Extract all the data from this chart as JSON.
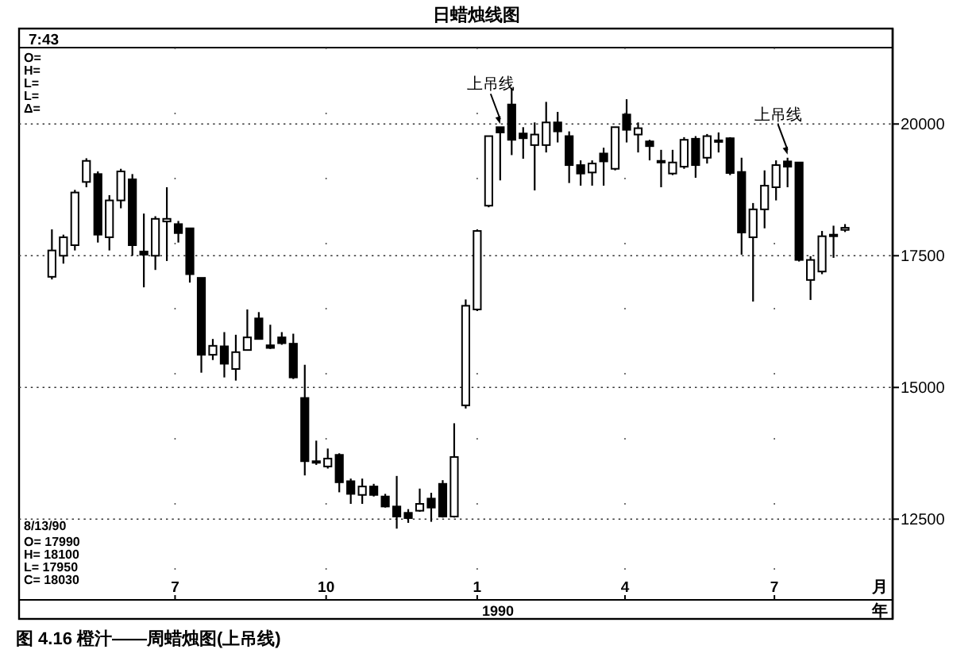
{
  "chart_data": {
    "type": "candlestick",
    "title": "日蜡烛线图",
    "xlabel": "月",
    "annotations": [
      "7:43",
      "O=",
      "H=",
      "L=",
      "L=",
      "Δ=",
      "8/13/90",
      "O= 17990",
      "H= 18100",
      "L= 17950",
      "C= 18030",
      "1990",
      "年",
      "图 4.16 橙汁——周蜡烛图(上吊线)",
      {
        "text": "上吊线",
        "x": "1990-01-15",
        "y": 19940
      },
      {
        "text": "上吊线",
        "x": "1990-07-09",
        "y": 19360
      }
    ],
    "x": [
      "1989-04-17",
      "1989-04-24",
      "1989-05-01",
      "1989-05-08",
      "1989-05-15",
      "1989-05-22",
      "1989-05-29",
      "1989-06-05",
      "1989-06-12",
      "1989-06-19",
      "1989-06-26",
      "1989-07-03",
      "1989-07-10",
      "1989-07-17",
      "1989-07-24",
      "1989-07-31",
      "1989-08-07",
      "1989-08-14",
      "1989-08-21",
      "1989-08-28",
      "1989-09-04",
      "1989-09-11",
      "1989-09-18",
      "1989-09-25",
      "1989-10-02",
      "1989-10-09",
      "1989-10-16",
      "1989-10-23",
      "1989-10-30",
      "1989-11-06",
      "1989-11-13",
      "1989-11-20",
      "1989-11-27",
      "1989-12-04",
      "1989-12-11",
      "1989-12-18",
      "1989-12-25",
      "1990-01-01",
      "1990-01-08",
      "1990-01-15",
      "1990-01-22",
      "1990-01-29",
      "1990-02-05",
      "1990-02-12",
      "1990-02-19",
      "1990-02-26",
      "1990-03-05",
      "1990-03-12",
      "1990-03-19",
      "1990-03-26",
      "1990-04-02",
      "1990-04-09",
      "1990-04-16",
      "1990-04-23",
      "1990-04-30",
      "1990-05-07",
      "1990-05-14",
      "1990-05-21",
      "1990-05-28",
      "1990-06-04",
      "1990-06-11",
      "1990-06-18",
      "1990-06-25",
      "1990-07-02",
      "1990-07-09",
      "1990-07-16",
      "1990-07-23",
      "1990-07-30",
      "1990-08-06",
      "1990-08-13"
    ],
    "ohlc": [
      [
        17100,
        18000,
        17050,
        17600
      ],
      [
        17500,
        17900,
        17350,
        17850
      ],
      [
        17700,
        18750,
        17600,
        18700
      ],
      [
        18900,
        19350,
        18800,
        19300
      ],
      [
        19050,
        19100,
        17750,
        17900
      ],
      [
        17850,
        18650,
        17600,
        18550
      ],
      [
        18550,
        19150,
        18400,
        19100
      ],
      [
        18950,
        19050,
        17500,
        17700
      ],
      [
        17580,
        18300,
        16900,
        17520
      ],
      [
        17500,
        18250,
        17230,
        18200
      ],
      [
        18150,
        18800,
        17400,
        18200
      ],
      [
        18100,
        18160,
        17750,
        17930
      ],
      [
        18020,
        18020,
        16990,
        17150
      ],
      [
        17080,
        17080,
        15280,
        15620
      ],
      [
        15620,
        15920,
        15520,
        15790
      ],
      [
        15780,
        16050,
        15190,
        15450
      ],
      [
        15350,
        16000,
        15130,
        15670
      ],
      [
        15710,
        16480,
        15710,
        15950
      ],
      [
        16310,
        16430,
        15910,
        15920
      ],
      [
        15800,
        16190,
        15730,
        15750
      ],
      [
        15950,
        16050,
        15810,
        15840
      ],
      [
        15830,
        16020,
        15160,
        15190
      ],
      [
        14800,
        15430,
        13330,
        13600
      ],
      [
        13580,
        13990,
        13530,
        13600
      ],
      [
        13500,
        13840,
        13460,
        13650
      ],
      [
        13720,
        13750,
        13010,
        13200
      ],
      [
        13220,
        13270,
        12790,
        12980
      ],
      [
        12960,
        13270,
        12790,
        13120
      ],
      [
        13120,
        13170,
        12930,
        12960
      ],
      [
        12930,
        12980,
        12720,
        12740
      ],
      [
        12740,
        13320,
        12320,
        12550
      ],
      [
        12620,
        12690,
        12430,
        12520
      ],
      [
        12660,
        13080,
        12640,
        12790
      ],
      [
        12890,
        13000,
        12450,
        12720
      ],
      [
        13170,
        13240,
        12530,
        12550
      ],
      [
        12550,
        14320,
        12530,
        13680
      ],
      [
        14660,
        16670,
        14600,
        16550
      ],
      [
        16480,
        18000,
        16450,
        17970
      ],
      [
        18450,
        19770,
        18420,
        19770
      ],
      [
        19940,
        19940,
        18930,
        19840
      ],
      [
        20370,
        20690,
        19410,
        19700
      ],
      [
        19820,
        19940,
        19340,
        19730
      ],
      [
        19600,
        20030,
        18740,
        19800
      ],
      [
        19600,
        20420,
        19460,
        20030
      ],
      [
        20030,
        20230,
        19650,
        19860
      ],
      [
        19770,
        19860,
        18880,
        19220
      ],
      [
        19220,
        19310,
        18830,
        19060
      ],
      [
        19080,
        19310,
        18830,
        19250
      ],
      [
        19440,
        19550,
        18830,
        19290
      ],
      [
        19150,
        19940,
        19120,
        19940
      ],
      [
        20180,
        20470,
        19650,
        19890
      ],
      [
        19800,
        20030,
        19460,
        19920
      ],
      [
        19670,
        19700,
        19310,
        19580
      ],
      [
        19290,
        19510,
        18800,
        19300
      ],
      [
        19060,
        19510,
        19030,
        19270
      ],
      [
        19190,
        19750,
        19150,
        19700
      ],
      [
        19720,
        19770,
        18980,
        19220
      ],
      [
        19360,
        19810,
        19250,
        19770
      ],
      [
        19670,
        19840,
        19460,
        19690
      ],
      [
        19730,
        19750,
        19030,
        19070
      ],
      [
        19090,
        19360,
        17520,
        17940
      ],
      [
        17850,
        18500,
        16630,
        18380
      ],
      [
        18380,
        19120,
        18020,
        18830
      ],
      [
        18800,
        19310,
        18550,
        19220
      ],
      [
        19290,
        19360,
        18800,
        19190
      ],
      [
        19270,
        19270,
        17390,
        17420
      ],
      [
        17040,
        17490,
        16660,
        17420
      ],
      [
        17200,
        17970,
        17150,
        17870
      ],
      [
        17880,
        18070,
        17460,
        17900
      ],
      [
        17990,
        18100,
        17950,
        18030
      ]
    ],
    "xlim": [
      "1989-03-28",
      "1990-09-11"
    ],
    "xticks": [
      {
        "value": "1989-07-01",
        "label": "7"
      },
      {
        "value": "1989-10-01",
        "label": "10"
      },
      {
        "value": "1990-01-01",
        "label": "1"
      },
      {
        "value": "1990-04-01",
        "label": "4"
      },
      {
        "value": "1990-07-01",
        "label": "7"
      }
    ],
    "ylim": [
      11450,
      21450
    ],
    "yticks": [
      12500,
      15000,
      17500,
      20000
    ],
    "grid": true
  }
}
